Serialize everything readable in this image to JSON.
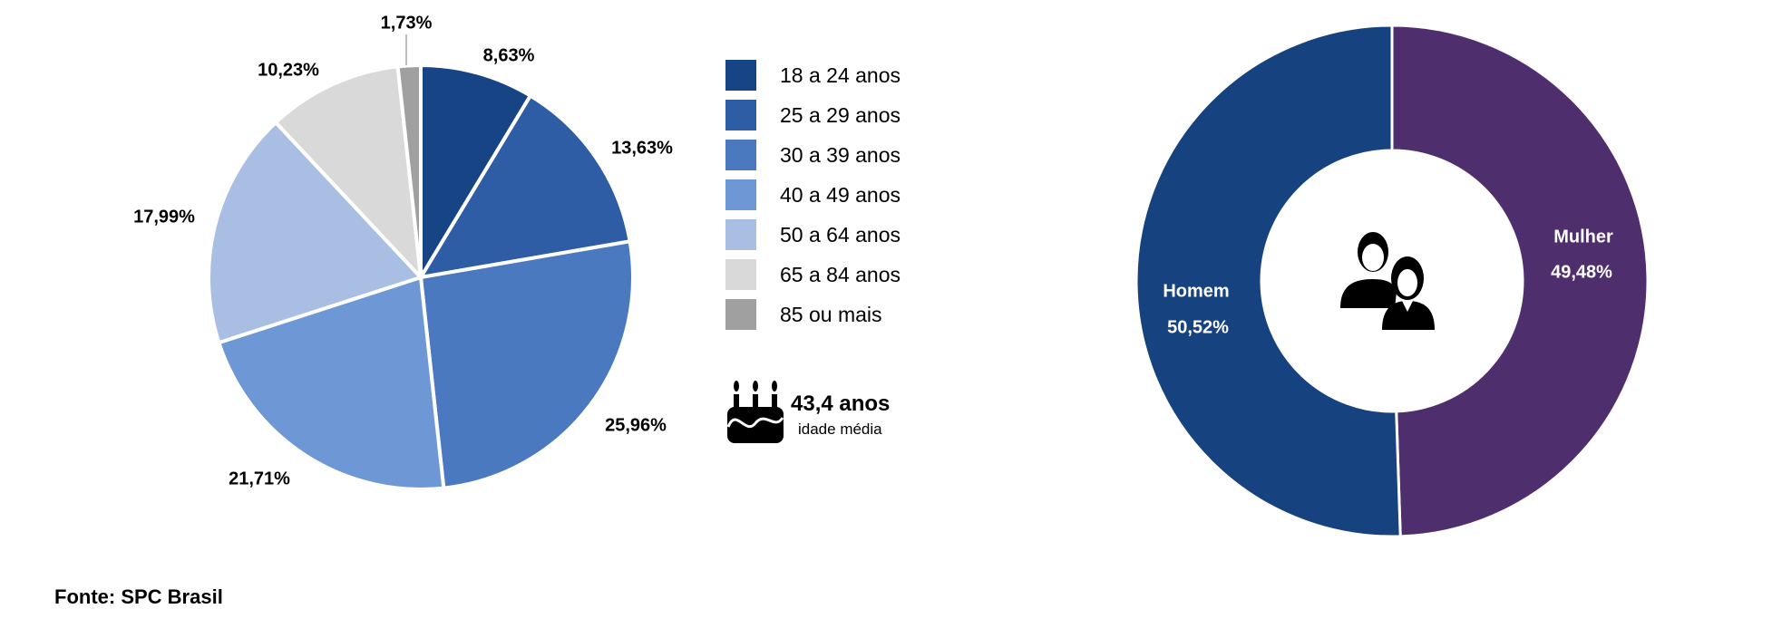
{
  "chart_data": [
    {
      "type": "pie",
      "title": "",
      "categories": [
        "18 a 24 anos",
        "25 a 29 anos",
        "30 a 39 anos",
        "40 a 49 anos",
        "50 a 64 anos",
        "65 a 84 anos",
        "85 ou mais"
      ],
      "values": [
        8.63,
        13.63,
        25.96,
        21.71,
        17.99,
        10.23,
        1.73
      ],
      "data_labels": [
        "8,63%",
        "13,63%",
        "25,96%",
        "21,71%",
        "17,99%",
        "10,23%",
        "1,73%"
      ],
      "colors": [
        "#174485",
        "#2e5da5",
        "#4a79c0",
        "#6e98d5",
        "#a8bfe3",
        "#d9d9d9",
        "#a0a0a0"
      ],
      "legend_placement": "right"
    },
    {
      "type": "donut",
      "categories": [
        "Mulher",
        "Homem"
      ],
      "values": [
        49.48,
        50.52
      ],
      "data_labels": [
        "49,48%",
        "50,52%"
      ],
      "colors": [
        "#4f2e6e",
        "#174280"
      ]
    }
  ],
  "average_age": {
    "value": "43,4 anos",
    "label": "idade média",
    "icon": "birthday-cake-icon"
  },
  "center_icon": "couple-icon",
  "source": "Fonte: SPC Brasil"
}
